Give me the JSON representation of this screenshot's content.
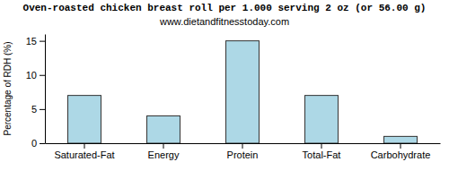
{
  "chart_data": {
    "type": "bar",
    "title": "Oven-roasted chicken breast roll per 1.000 serving 2 oz (or 56.00 g)",
    "subtitle": "www.dietandfitnesstoday.com",
    "y_label": "Percentage of RDH (%)",
    "categories": [
      "Saturated-Fat",
      "Energy",
      "Protein",
      "Total-Fat",
      "Carbohydrate"
    ],
    "values": [
      7,
      4,
      15,
      7,
      1
    ],
    "color": "#add8e6",
    "ylim": [
      0,
      16
    ],
    "yticks": [
      0,
      5,
      10,
      15
    ],
    "grid": false
  }
}
